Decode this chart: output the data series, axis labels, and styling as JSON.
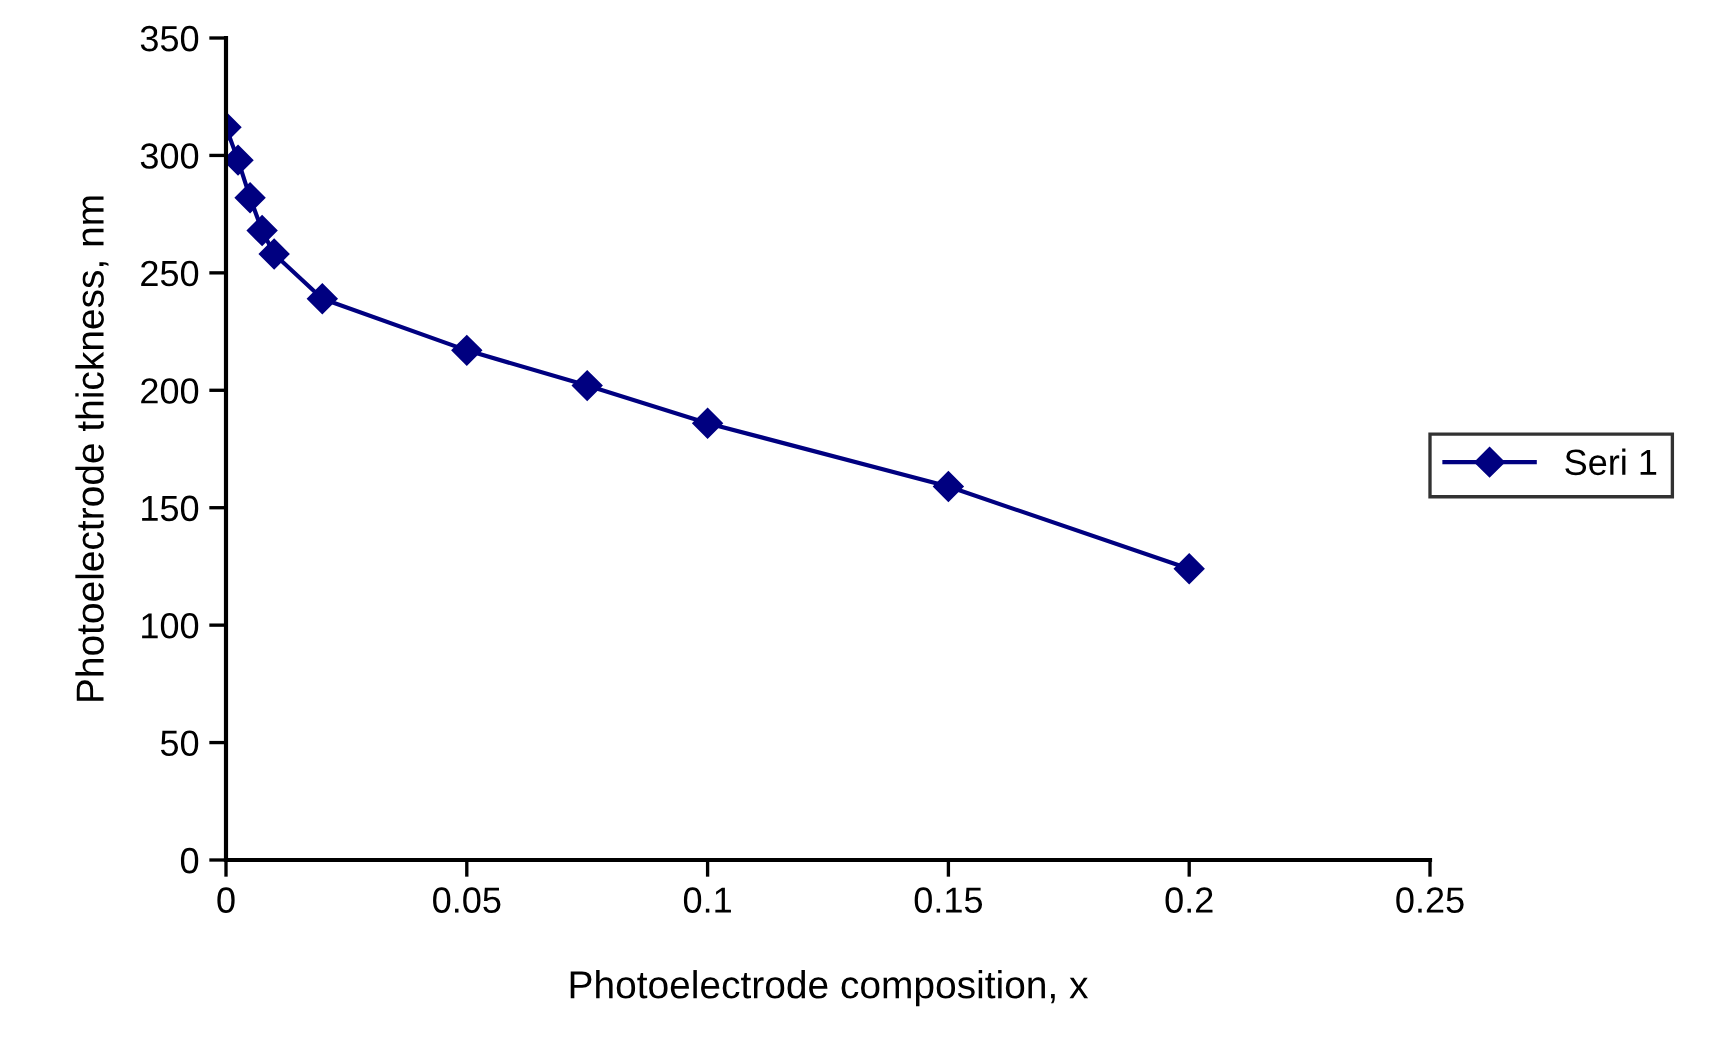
{
  "chart_data": {
    "type": "line",
    "xlabel": "Photoelectrode composition, x",
    "ylabel": "Photoelectrode thickness, nm",
    "series": [
      {
        "name": "Seri 1",
        "color": "#000080",
        "x": [
          0,
          0.0025,
          0.005,
          0.0075,
          0.01,
          0.02,
          0.05,
          0.075,
          0.1,
          0.15,
          0.2
        ],
        "values": [
          312,
          298,
          282,
          268,
          258,
          239,
          217,
          202,
          186,
          159,
          124
        ]
      }
    ],
    "xlim": [
      0,
      0.25
    ],
    "xticks": [
      0,
      0.05,
      0.1,
      0.15,
      0.2,
      0.25
    ],
    "ylim": [
      0,
      350
    ],
    "yticks": [
      0,
      50,
      100,
      150,
      200,
      250,
      300,
      350
    ],
    "marker": "diamond",
    "line_style": "solid",
    "grid": false,
    "legend": "right"
  }
}
